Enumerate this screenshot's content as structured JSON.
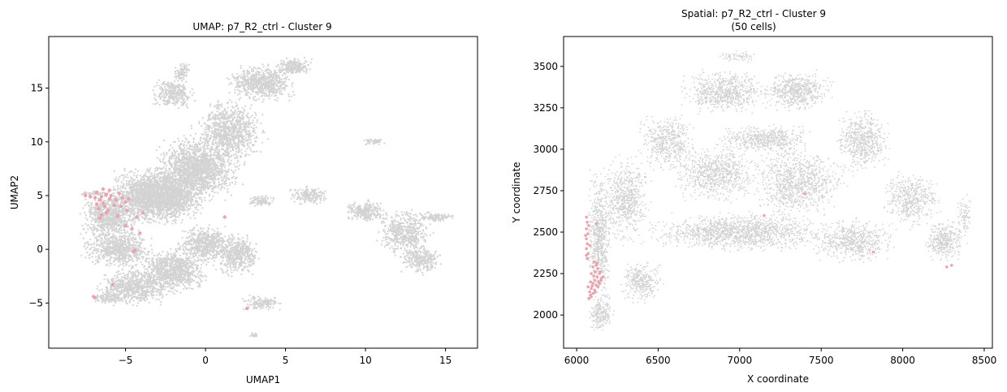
{
  "chart_data": [
    {
      "type": "scatter",
      "title": "UMAP: p7_R2_ctrl - Cluster 9",
      "xlabel": "UMAP1",
      "ylabel": "UMAP2",
      "xlim": [
        -9.8,
        17.0
      ],
      "ylim": [
        -9.2,
        19.8
      ],
      "xticks": [
        -5,
        0,
        5,
        10,
        15
      ],
      "yticks": [
        -5,
        0,
        5,
        10,
        15
      ],
      "xtick_labels": [
        "−5",
        "0",
        "5",
        "10",
        "15"
      ],
      "ytick_labels": [
        "−5",
        "0",
        "5",
        "10",
        "15"
      ],
      "grid": false,
      "colors": {
        "background_cells": "#d3d3d3",
        "highlight": "#e8a5b0"
      },
      "background_regions": [
        {
          "cx": -3.0,
          "cy": 5.0,
          "rx": 3.5,
          "ry": 3.0,
          "n": 2600
        },
        {
          "cx": -0.5,
          "cy": 7.5,
          "rx": 3.0,
          "ry": 3.5,
          "n": 1600
        },
        {
          "cx": 1.5,
          "cy": 11.0,
          "rx": 2.5,
          "ry": 3.5,
          "n": 900
        },
        {
          "cx": 3.5,
          "cy": 15.5,
          "rx": 2.5,
          "ry": 2.0,
          "n": 700
        },
        {
          "cx": 5.5,
          "cy": 17.0,
          "rx": 1.3,
          "ry": 1.0,
          "n": 220
        },
        {
          "cx": -2.0,
          "cy": 14.5,
          "rx": 1.5,
          "ry": 1.6,
          "n": 300
        },
        {
          "cx": -1.5,
          "cy": 16.5,
          "rx": 0.6,
          "ry": 1.0,
          "n": 90
        },
        {
          "cx": -6.0,
          "cy": 3.0,
          "rx": 2.0,
          "ry": 2.5,
          "n": 700
        },
        {
          "cx": -5.5,
          "cy": 0.0,
          "rx": 2.5,
          "ry": 2.0,
          "n": 700
        },
        {
          "cx": -4.5,
          "cy": -3.5,
          "rx": 2.5,
          "ry": 2.0,
          "n": 700
        },
        {
          "cx": -2.0,
          "cy": -2.0,
          "rx": 2.5,
          "ry": 2.5,
          "n": 900
        },
        {
          "cx": 0.0,
          "cy": 0.5,
          "rx": 2.0,
          "ry": 2.0,
          "n": 600
        },
        {
          "cx": 2.0,
          "cy": -0.5,
          "rx": 1.6,
          "ry": 2.2,
          "n": 500
        },
        {
          "cx": 3.5,
          "cy": -5.0,
          "rx": 1.4,
          "ry": 0.8,
          "n": 140
        },
        {
          "cx": 3.0,
          "cy": -8.0,
          "rx": 0.3,
          "ry": 0.3,
          "n": 25
        },
        {
          "cx": 6.5,
          "cy": 5.0,
          "rx": 1.5,
          "ry": 1.0,
          "n": 180
        },
        {
          "cx": 3.5,
          "cy": 4.5,
          "rx": 1.0,
          "ry": 0.6,
          "n": 90
        },
        {
          "cx": 10.0,
          "cy": 3.5,
          "rx": 1.5,
          "ry": 1.2,
          "n": 260
        },
        {
          "cx": 12.5,
          "cy": 1.5,
          "rx": 2.0,
          "ry": 2.5,
          "n": 500
        },
        {
          "cx": 13.5,
          "cy": -1.0,
          "rx": 1.5,
          "ry": 1.5,
          "n": 260
        },
        {
          "cx": 14.5,
          "cy": 3.0,
          "rx": 1.3,
          "ry": 0.5,
          "n": 110
        },
        {
          "cx": 10.5,
          "cy": 10.0,
          "rx": 0.8,
          "ry": 0.3,
          "n": 45
        },
        {
          "cx": -7.0,
          "cy": 5.2,
          "rx": 1.2,
          "ry": 0.3,
          "n": 60
        },
        {
          "cx": -6.0,
          "cy": -4.5,
          "rx": 1.0,
          "ry": 0.6,
          "n": 110
        }
      ],
      "highlight_points": [
        [
          -6.8,
          5.3
        ],
        [
          -6.5,
          4.9
        ],
        [
          -6.2,
          5.1
        ],
        [
          -6.6,
          4.6
        ],
        [
          -6.4,
          4.3
        ],
        [
          -6.9,
          4.8
        ],
        [
          -6.3,
          4.0
        ],
        [
          -6.7,
          3.8
        ],
        [
          -6.5,
          3.2
        ],
        [
          -6.2,
          3.4
        ],
        [
          -6.0,
          4.7
        ],
        [
          -5.9,
          5.0
        ],
        [
          -5.6,
          4.6
        ],
        [
          -5.4,
          5.2
        ],
        [
          -5.2,
          4.8
        ],
        [
          -5.0,
          4.4
        ],
        [
          -5.7,
          4.1
        ],
        [
          -6.1,
          3.6
        ],
        [
          -6.8,
          4.2
        ],
        [
          -7.2,
          4.9
        ],
        [
          -7.5,
          5.0
        ],
        [
          -5.3,
          4.0
        ],
        [
          -5.5,
          3.1
        ],
        [
          -4.9,
          3.6
        ],
        [
          -4.3,
          3.0
        ],
        [
          -5.0,
          2.2
        ],
        [
          -4.6,
          1.9
        ],
        [
          -4.1,
          1.5
        ],
        [
          -4.4,
          -0.1
        ],
        [
          -4.5,
          -0.2
        ],
        [
          -3.9,
          3.4
        ],
        [
          -4.8,
          4.7
        ],
        [
          -6.6,
          2.9
        ],
        [
          -7.0,
          -4.4
        ],
        [
          -6.9,
          -4.5
        ],
        [
          -5.8,
          -3.3
        ],
        [
          1.2,
          3.0
        ],
        [
          2.6,
          -5.5
        ],
        [
          -6.4,
          5.6
        ],
        [
          -6.0,
          5.5
        ]
      ]
    },
    {
      "type": "scatter",
      "title": "Spatial: p7_R2_ctrl - Cluster 9\n(50 cells)",
      "title_lines": [
        "Spatial: p7_R2_ctrl - Cluster 9",
        "(50 cells)"
      ],
      "xlabel": "X coordinate",
      "ylabel": "Y coordinate",
      "xlim": [
        5920,
        8550
      ],
      "ylim": [
        1800,
        3680
      ],
      "xticks": [
        6000,
        6500,
        7000,
        7500,
        8000,
        8500
      ],
      "yticks": [
        2000,
        2250,
        2500,
        2750,
        3000,
        3250,
        3500
      ],
      "xtick_labels": [
        "6000",
        "6500",
        "7000",
        "7500",
        "8000",
        "8500"
      ],
      "ytick_labels": [
        "2000",
        "2250",
        "2500",
        "2750",
        "3000",
        "3250",
        "3500"
      ],
      "grid": false,
      "colors": {
        "background_cells": "#d3d3d3",
        "highlight": "#e8a5b0"
      },
      "background_regions": [
        {
          "cx": 6140,
          "cy": 2450,
          "rx": 90,
          "ry": 480,
          "n": 700
        },
        {
          "cx": 6300,
          "cy": 2700,
          "rx": 180,
          "ry": 300,
          "n": 600
        },
        {
          "cx": 6550,
          "cy": 3050,
          "rx": 200,
          "ry": 200,
          "n": 450
        },
        {
          "cx": 6900,
          "cy": 3350,
          "rx": 300,
          "ry": 150,
          "n": 650
        },
        {
          "cx": 7350,
          "cy": 3350,
          "rx": 250,
          "ry": 140,
          "n": 550
        },
        {
          "cx": 7750,
          "cy": 3050,
          "rx": 200,
          "ry": 220,
          "n": 550
        },
        {
          "cx": 8050,
          "cy": 2700,
          "rx": 200,
          "ry": 200,
          "n": 450
        },
        {
          "cx": 8250,
          "cy": 2450,
          "rx": 150,
          "ry": 150,
          "n": 350
        },
        {
          "cx": 7000,
          "cy": 2500,
          "rx": 650,
          "ry": 130,
          "n": 1300
        },
        {
          "cx": 7350,
          "cy": 2800,
          "rx": 350,
          "ry": 250,
          "n": 900
        },
        {
          "cx": 6850,
          "cy": 2850,
          "rx": 300,
          "ry": 200,
          "n": 700
        },
        {
          "cx": 7700,
          "cy": 2450,
          "rx": 300,
          "ry": 150,
          "n": 550
        },
        {
          "cx": 6400,
          "cy": 2200,
          "rx": 150,
          "ry": 150,
          "n": 300
        },
        {
          "cx": 7150,
          "cy": 3060,
          "rx": 350,
          "ry": 100,
          "n": 500
        },
        {
          "cx": 6150,
          "cy": 2000,
          "rx": 90,
          "ry": 130,
          "n": 200
        },
        {
          "cx": 7000,
          "cy": 3560,
          "rx": 150,
          "ry": 40,
          "n": 60
        },
        {
          "cx": 8380,
          "cy": 2600,
          "rx": 50,
          "ry": 150,
          "n": 80
        }
      ],
      "highlight_points": [
        [
          6060,
          2590
        ],
        [
          6065,
          2560
        ],
        [
          6060,
          2520
        ],
        [
          6070,
          2490
        ],
        [
          6060,
          2460
        ],
        [
          6065,
          2430
        ],
        [
          6060,
          2400
        ],
        [
          6070,
          2370
        ],
        [
          6065,
          2340
        ],
        [
          6075,
          2540
        ],
        [
          6055,
          2480
        ],
        [
          6080,
          2420
        ],
        [
          6120,
          2550
        ],
        [
          6110,
          2320
        ],
        [
          6120,
          2300
        ],
        [
          6130,
          2280
        ],
        [
          6115,
          2260
        ],
        [
          6140,
          2250
        ],
        [
          6125,
          2230
        ],
        [
          6150,
          2220
        ],
        [
          6110,
          2210
        ],
        [
          6135,
          2200
        ],
        [
          6100,
          2190
        ],
        [
          6120,
          2180
        ],
        [
          6090,
          2160
        ],
        [
          6110,
          2150
        ],
        [
          6080,
          2140
        ],
        [
          6100,
          2130
        ],
        [
          6090,
          2110
        ],
        [
          6070,
          2170
        ],
        [
          6085,
          2200
        ],
        [
          6140,
          2190
        ],
        [
          6160,
          2230
        ],
        [
          6105,
          2235
        ],
        [
          6095,
          2175
        ],
        [
          6130,
          2170
        ],
        [
          6145,
          2260
        ],
        [
          6090,
          2250
        ],
        [
          6075,
          2100
        ],
        [
          6060,
          2360
        ],
        [
          6150,
          2210
        ],
        [
          6125,
          2310
        ],
        [
          6100,
          2290
        ],
        [
          6085,
          2120
        ],
        [
          6115,
          2140
        ],
        [
          7400,
          2730
        ],
        [
          7150,
          2600
        ],
        [
          7820,
          2380
        ],
        [
          8270,
          2290
        ],
        [
          8300,
          2300
        ]
      ]
    }
  ]
}
